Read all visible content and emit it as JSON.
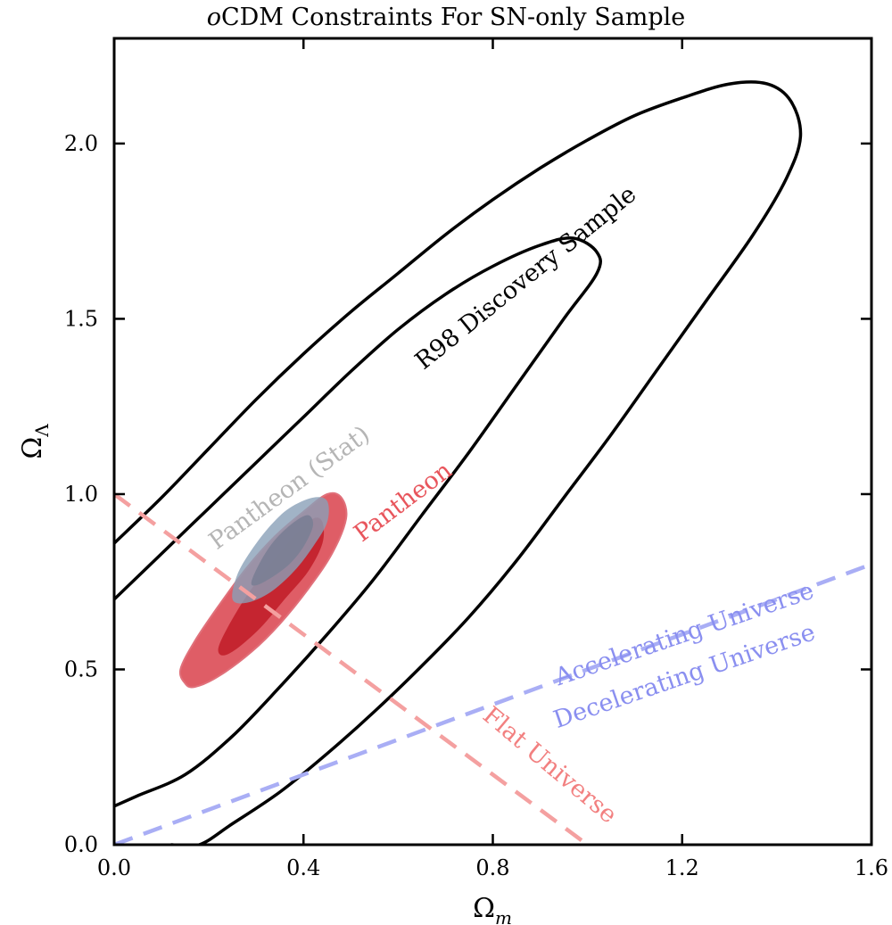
{
  "chart_data": {
    "type": "contour",
    "title": {
      "prefix": "o",
      "main": "CDM Constraints For SN-only Sample"
    },
    "xlabel": {
      "base": "Ω",
      "sub": "m"
    },
    "ylabel": {
      "base": "Ω",
      "sub": "Λ"
    },
    "xlim": [
      0.0,
      1.6
    ],
    "ylim": [
      0.0,
      2.3
    ],
    "xticks": [
      0.0,
      0.4,
      0.8,
      1.2,
      1.6
    ],
    "xtick_labels": [
      "0.0",
      "0.4",
      "0.8",
      "1.2",
      "1.6"
    ],
    "yticks": [
      0.0,
      0.5,
      1.0,
      1.5,
      2.0
    ],
    "ytick_labels": [
      "0.0",
      "0.5",
      "1.0",
      "1.5",
      "2.0"
    ],
    "grid": false,
    "colors": {
      "r98": "#000000",
      "pantheon_outer": "#d9414b",
      "pantheon_inner": "#c21f2a",
      "pantheon_stat_outer": "#8aa0b8",
      "pantheon_stat_inner": "#7b7f95",
      "flat_line": "#f4a0a0",
      "accel_line": "#a9aef5",
      "accel_text": "#8a8ff0",
      "flat_text": "#f28080",
      "pantheon_text": "#e8555c",
      "stat_text": "#b5b5b5"
    },
    "series": [
      {
        "name": "R98 Discovery Sample",
        "kind": "contour",
        "levels": [
          {
            "level": "1-sigma",
            "points": [
              [
                0.0,
                0.7
              ],
              [
                0.1,
                0.83
              ],
              [
                0.2,
                0.96
              ],
              [
                0.3,
                1.09
              ],
              [
                0.4,
                1.22
              ],
              [
                0.5,
                1.35
              ],
              [
                0.6,
                1.47
              ],
              [
                0.7,
                1.57
              ],
              [
                0.8,
                1.65
              ],
              [
                0.9,
                1.71
              ],
              [
                0.97,
                1.73
              ],
              [
                1.02,
                1.69
              ],
              [
                1.02,
                1.63
              ],
              [
                0.95,
                1.5
              ],
              [
                0.85,
                1.31
              ],
              [
                0.75,
                1.12
              ],
              [
                0.65,
                0.94
              ],
              [
                0.55,
                0.76
              ],
              [
                0.45,
                0.6
              ],
              [
                0.35,
                0.45
              ],
              [
                0.25,
                0.31
              ],
              [
                0.15,
                0.2
              ],
              [
                0.05,
                0.14
              ],
              [
                0.0,
                0.11
              ]
            ]
          },
          {
            "level": "2-sigma",
            "points": [
              [
                0.0,
                0.86
              ],
              [
                0.1,
                0.99
              ],
              [
                0.2,
                1.13
              ],
              [
                0.3,
                1.27
              ],
              [
                0.4,
                1.4
              ],
              [
                0.5,
                1.52
              ],
              [
                0.6,
                1.63
              ],
              [
                0.7,
                1.74
              ],
              [
                0.8,
                1.84
              ],
              [
                0.9,
                1.93
              ],
              [
                1.0,
                2.01
              ],
              [
                1.1,
                2.08
              ],
              [
                1.2,
                2.13
              ],
              [
                1.3,
                2.17
              ],
              [
                1.38,
                2.17
              ],
              [
                1.43,
                2.12
              ],
              [
                1.45,
                2.02
              ],
              [
                1.42,
                1.9
              ],
              [
                1.35,
                1.74
              ],
              [
                1.25,
                1.55
              ],
              [
                1.15,
                1.36
              ],
              [
                1.05,
                1.17
              ],
              [
                0.95,
                0.99
              ],
              [
                0.85,
                0.81
              ],
              [
                0.75,
                0.65
              ],
              [
                0.65,
                0.51
              ],
              [
                0.55,
                0.38
              ],
              [
                0.45,
                0.26
              ],
              [
                0.35,
                0.15
              ],
              [
                0.25,
                0.06
              ],
              [
                0.18,
                0.0
              ],
              [
                0.12,
                0.0
              ]
            ]
          }
        ]
      },
      {
        "name": "Pantheon",
        "kind": "filled-contour",
        "levels": [
          {
            "level": "2-sigma",
            "points": [
              [
                0.15,
                0.46
              ],
              [
                0.14,
                0.5
              ],
              [
                0.17,
                0.58
              ],
              [
                0.22,
                0.68
              ],
              [
                0.28,
                0.79
              ],
              [
                0.34,
                0.88
              ],
              [
                0.4,
                0.95
              ],
              [
                0.45,
                1.0
              ],
              [
                0.48,
                0.99
              ],
              [
                0.49,
                0.93
              ],
              [
                0.46,
                0.83
              ],
              [
                0.41,
                0.73
              ],
              [
                0.35,
                0.63
              ],
              [
                0.29,
                0.55
              ],
              [
                0.22,
                0.48
              ],
              [
                0.17,
                0.45
              ]
            ]
          },
          {
            "level": "1-sigma",
            "points": [
              [
                0.22,
                0.56
              ],
              [
                0.24,
                0.62
              ],
              [
                0.28,
                0.71
              ],
              [
                0.33,
                0.8
              ],
              [
                0.38,
                0.88
              ],
              [
                0.42,
                0.93
              ],
              [
                0.44,
                0.92
              ],
              [
                0.44,
                0.86
              ],
              [
                0.41,
                0.78
              ],
              [
                0.36,
                0.7
              ],
              [
                0.31,
                0.62
              ],
              [
                0.26,
                0.56
              ],
              [
                0.23,
                0.54
              ]
            ]
          }
        ]
      },
      {
        "name": "Pantheon (Stat)",
        "kind": "filled-contour",
        "levels": [
          {
            "level": "2-sigma",
            "points": [
              [
                0.25,
                0.7
              ],
              [
                0.26,
                0.77
              ],
              [
                0.29,
                0.84
              ],
              [
                0.33,
                0.91
              ],
              [
                0.37,
                0.96
              ],
              [
                0.42,
                0.99
              ],
              [
                0.45,
                0.98
              ],
              [
                0.45,
                0.92
              ],
              [
                0.42,
                0.85
              ],
              [
                0.38,
                0.78
              ],
              [
                0.33,
                0.72
              ],
              [
                0.28,
                0.69
              ]
            ]
          },
          {
            "level": "1-sigma",
            "points": [
              [
                0.29,
                0.75
              ],
              [
                0.31,
                0.81
              ],
              [
                0.34,
                0.87
              ],
              [
                0.38,
                0.92
              ],
              [
                0.41,
                0.94
              ],
              [
                0.42,
                0.91
              ],
              [
                0.4,
                0.85
              ],
              [
                0.37,
                0.8
              ],
              [
                0.33,
                0.76
              ],
              [
                0.3,
                0.74
              ]
            ]
          }
        ]
      },
      {
        "name": "Flat Universe",
        "kind": "line",
        "style": "dashed",
        "points": [
          [
            0.0,
            1.0
          ],
          [
            1.0,
            0.0
          ]
        ]
      },
      {
        "name": "Accelerating Universe / Decelerating Universe",
        "kind": "line",
        "style": "dashed",
        "points": [
          [
            0.0,
            0.0
          ],
          [
            1.6,
            0.8
          ]
        ]
      }
    ],
    "annotations": [
      {
        "text": "R98 Discovery Sample",
        "x": 0.88,
        "y": 1.6,
        "angle_deg": -39,
        "color": "#000000"
      },
      {
        "text": "Pantheon (Stat)",
        "x": 0.38,
        "y": 1.0,
        "angle_deg": -36,
        "color": "#b5b5b5"
      },
      {
        "text": "Pantheon",
        "x": 0.62,
        "y": 0.96,
        "angle_deg": -37,
        "color": "#e8555c"
      },
      {
        "text": "Accelerating Universe",
        "x": 1.21,
        "y": 0.58,
        "angle_deg": -19,
        "color": "#8a8ff0"
      },
      {
        "text": "Decelerating Universe",
        "x": 1.21,
        "y": 0.46,
        "angle_deg": -19,
        "color": "#8a8ff0"
      },
      {
        "text": "Flat Universe",
        "x": 0.91,
        "y": 0.21,
        "angle_deg": 40,
        "color": "#f28080"
      }
    ]
  }
}
